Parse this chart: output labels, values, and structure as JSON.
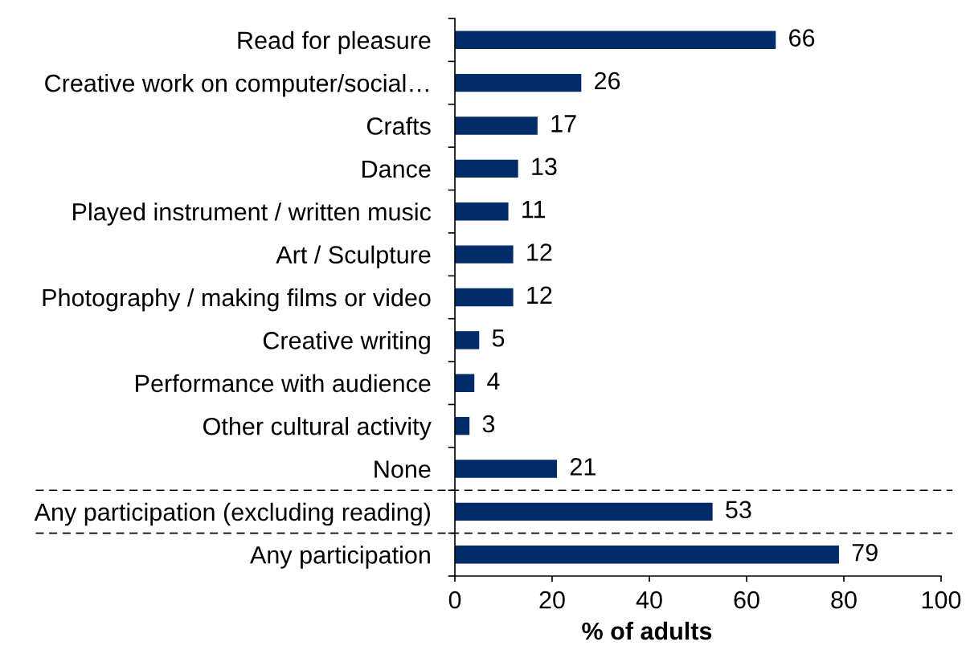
{
  "chart_data": {
    "type": "bar",
    "orientation": "horizontal",
    "xlabel": "% of adults",
    "categories": [
      "Read for pleasure",
      "Creative work on computer/social…",
      "Crafts",
      "Dance",
      "Played instrument / written music",
      "Art / Sculpture",
      "Photography / making films or video",
      "Creative writing",
      "Performance with audience",
      "Other cultural activity",
      "None",
      "Any participation (excluding reading)",
      "Any participation"
    ],
    "values": [
      66,
      26,
      17,
      13,
      11,
      12,
      12,
      5,
      4,
      3,
      21,
      53,
      79
    ],
    "color": "#012b69",
    "data_labels": true,
    "xlim": [
      0,
      100
    ],
    "xticks": [
      0,
      20,
      40,
      60,
      80,
      100
    ]
  }
}
